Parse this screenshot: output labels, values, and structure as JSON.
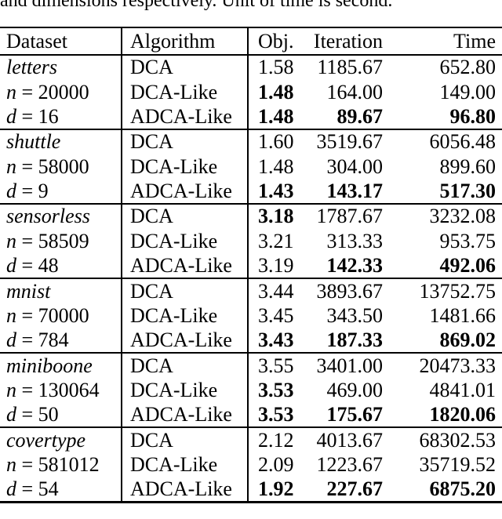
{
  "caption": "and dimensions respectively. Unit of time is second.",
  "table": {
    "columns": {
      "dataset": "Dataset",
      "algorithm": "Algorithm",
      "obj": "Obj.",
      "iteration": "Iteration",
      "time": "Time"
    },
    "notation": {
      "n_var": "n",
      "d_var": "d",
      "equals": "="
    },
    "groups": [
      {
        "name": "letters",
        "n": "20000",
        "d": "16",
        "rows": [
          {
            "alg": "DCA",
            "obj": "1.58",
            "obj_b": false,
            "iter": "1185.67",
            "iter_b": false,
            "time": "652.80",
            "time_b": false
          },
          {
            "alg": "DCA-Like",
            "obj": "1.48",
            "obj_b": true,
            "iter": "164.00",
            "iter_b": false,
            "time": "149.00",
            "time_b": false
          },
          {
            "alg": "ADCA-Like",
            "obj": "1.48",
            "obj_b": true,
            "iter": "89.67",
            "iter_b": true,
            "time": "96.80",
            "time_b": true
          }
        ]
      },
      {
        "name": "shuttle",
        "n": "58000",
        "d": "9",
        "rows": [
          {
            "alg": "DCA",
            "obj": "1.60",
            "obj_b": false,
            "iter": "3519.67",
            "iter_b": false,
            "time": "6056.48",
            "time_b": false
          },
          {
            "alg": "DCA-Like",
            "obj": "1.48",
            "obj_b": false,
            "iter": "304.00",
            "iter_b": false,
            "time": "899.60",
            "time_b": false
          },
          {
            "alg": "ADCA-Like",
            "obj": "1.43",
            "obj_b": true,
            "iter": "143.17",
            "iter_b": true,
            "time": "517.30",
            "time_b": true
          }
        ]
      },
      {
        "name": "sensorless",
        "n": "58509",
        "d": "48",
        "rows": [
          {
            "alg": "DCA",
            "obj": "3.18",
            "obj_b": true,
            "iter": "1787.67",
            "iter_b": false,
            "time": "3232.08",
            "time_b": false
          },
          {
            "alg": "DCA-Like",
            "obj": "3.21",
            "obj_b": false,
            "iter": "313.33",
            "iter_b": false,
            "time": "953.75",
            "time_b": false
          },
          {
            "alg": "ADCA-Like",
            "obj": "3.19",
            "obj_b": false,
            "iter": "142.33",
            "iter_b": true,
            "time": "492.06",
            "time_b": true
          }
        ]
      },
      {
        "name": "mnist",
        "n": "70000",
        "d": "784",
        "rows": [
          {
            "alg": "DCA",
            "obj": "3.44",
            "obj_b": false,
            "iter": "3893.67",
            "iter_b": false,
            "time": "13752.75",
            "time_b": false
          },
          {
            "alg": "DCA-Like",
            "obj": "3.45",
            "obj_b": false,
            "iter": "343.50",
            "iter_b": false,
            "time": "1481.66",
            "time_b": false
          },
          {
            "alg": "ADCA-Like",
            "obj": "3.43",
            "obj_b": true,
            "iter": "187.33",
            "iter_b": true,
            "time": "869.02",
            "time_b": true
          }
        ]
      },
      {
        "name": "miniboone",
        "n": "130064",
        "d": "50",
        "rows": [
          {
            "alg": "DCA",
            "obj": "3.55",
            "obj_b": false,
            "iter": "3401.00",
            "iter_b": false,
            "time": "20473.33",
            "time_b": false
          },
          {
            "alg": "DCA-Like",
            "obj": "3.53",
            "obj_b": true,
            "iter": "469.00",
            "iter_b": false,
            "time": "4841.01",
            "time_b": false
          },
          {
            "alg": "ADCA-Like",
            "obj": "3.53",
            "obj_b": true,
            "iter": "175.67",
            "iter_b": true,
            "time": "1820.06",
            "time_b": true
          }
        ]
      },
      {
        "name": "covertype",
        "n": "581012",
        "d": "54",
        "rows": [
          {
            "alg": "DCA",
            "obj": "2.12",
            "obj_b": false,
            "iter": "4013.67",
            "iter_b": false,
            "time": "68302.53",
            "time_b": false
          },
          {
            "alg": "DCA-Like",
            "obj": "2.09",
            "obj_b": false,
            "iter": "1223.67",
            "iter_b": false,
            "time": "35719.52",
            "time_b": false
          },
          {
            "alg": "ADCA-Like",
            "obj": "1.92",
            "obj_b": true,
            "iter": "227.67",
            "iter_b": true,
            "time": "6875.20",
            "time_b": true
          }
        ]
      }
    ]
  }
}
